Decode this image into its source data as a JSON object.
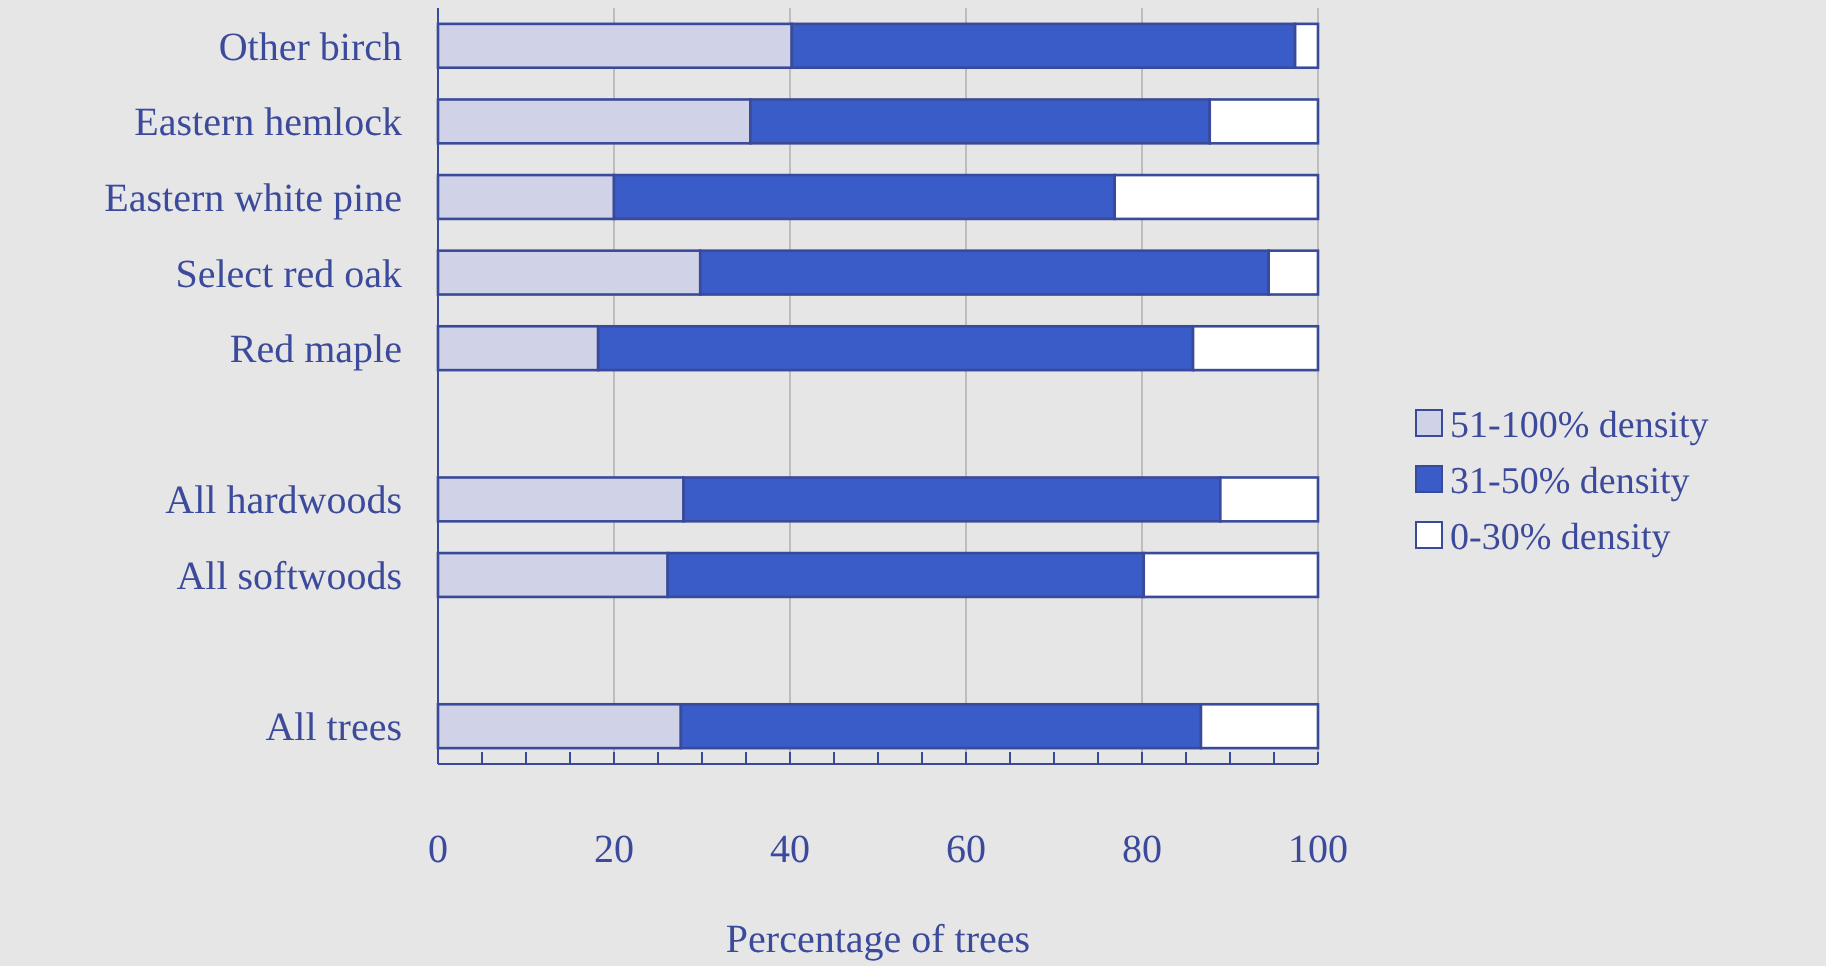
{
  "chart_data": {
    "type": "bar",
    "orientation": "horizontal",
    "stacked": true,
    "xlabel": "Percentage of trees",
    "categories": [
      "Other birch",
      "Eastern hemlock",
      "Eastern white pine",
      "Select red oak",
      "Red maple",
      null,
      "All hardwoods",
      "All softwoods",
      null,
      "All trees"
    ],
    "series": [
      {
        "name": "51-100% density",
        "color": "#d0d3e8",
        "values": [
          40.2,
          35.5,
          20.0,
          29.8,
          18.2,
          null,
          27.9,
          26.1,
          null,
          27.6
        ]
      },
      {
        "name": "31-50% density",
        "color": "#3a5cc8",
        "values": [
          57.2,
          52.2,
          56.9,
          64.6,
          67.6,
          null,
          61.0,
          54.1,
          null,
          59.1
        ]
      },
      {
        "name": "0-30% density",
        "color": "#ffffff",
        "values": [
          2.6,
          12.3,
          23.1,
          5.6,
          14.2,
          null,
          11.1,
          19.8,
          null,
          13.3
        ]
      }
    ],
    "xlim": [
      0,
      100
    ],
    "xticks": [
      0,
      {
        "value": 5,
        "label": null
      },
      {
        "value": 10,
        "label": null
      },
      {
        "value": 15,
        "label": null
      },
      20,
      {
        "value": 25,
        "label": null
      },
      {
        "value": 30,
        "label": null
      },
      {
        "value": 35,
        "label": null
      },
      40,
      {
        "value": 45,
        "label": null
      },
      {
        "value": 50,
        "label": null
      },
      {
        "value": 55,
        "label": null
      },
      60,
      {
        "value": 65,
        "label": null
      },
      {
        "value": 70,
        "label": null
      },
      {
        "value": 75,
        "label": null
      },
      80,
      {
        "value": 85,
        "label": null
      },
      {
        "value": 90,
        "label": null
      },
      {
        "value": 95,
        "label": null
      },
      100
    ],
    "grid": "x",
    "legend": "right"
  }
}
